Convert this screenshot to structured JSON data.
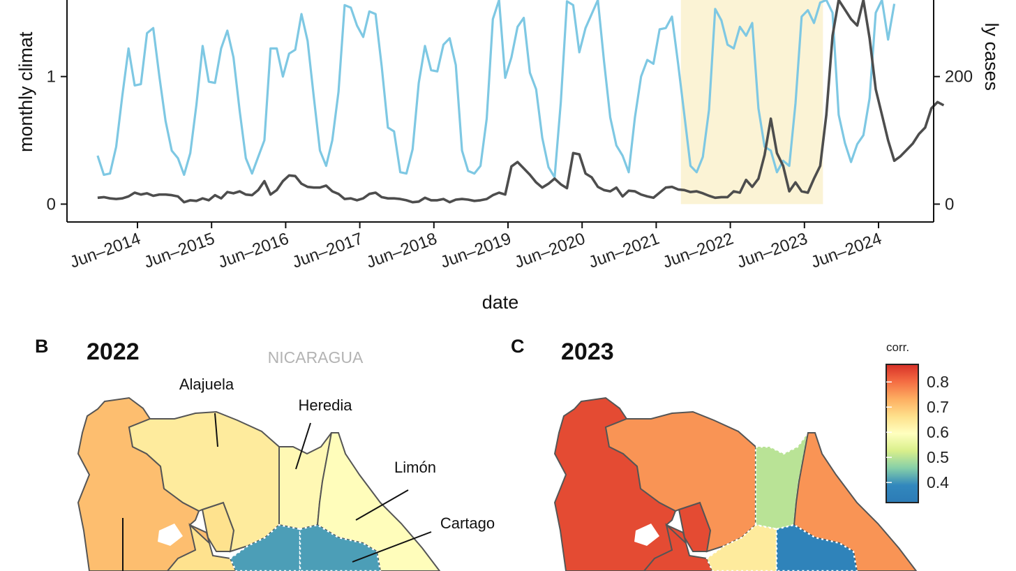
{
  "colors": {
    "climate": "#7ec8e3",
    "cases": "#4d4d4d",
    "highlight": "#fbf3d5",
    "axis": "#111111"
  },
  "chart_data": [
    {
      "type": "line",
      "title": "",
      "xlabel": "date",
      "ylabel_left": "monthly climat",
      "ylabel_right": "ly cases",
      "x_tick_labels": [
        "Jun–2014",
        "Jun–2015",
        "Jun–2016",
        "Jun–2017",
        "Jun–2018",
        "Jun–2019",
        "Jun–2020",
        "Jun–2021",
        "Jun–2022",
        "Jun–2023",
        "Jun–2024"
      ],
      "y_left_ticks": [
        "0",
        "1"
      ],
      "y_right_ticks": [
        "0",
        "200"
      ],
      "ylim_left": [
        -0.14,
        1.6
      ],
      "ylim_right": [
        -28,
        320
      ],
      "highlight_interval": [
        "Oct 2021",
        "Sep 2023"
      ],
      "series": [
        {
          "axis": "left",
          "values": [
            0.38,
            0.23,
            0.24,
            0.45,
            0.85,
            1.22,
            0.93,
            0.94,
            1.34,
            1.38,
            1.0,
            0.65,
            0.42,
            0.36,
            0.23,
            0.4,
            0.78,
            1.24,
            0.96,
            0.95,
            1.22,
            1.36,
            1.15,
            0.73,
            0.36,
            0.24,
            0.37,
            0.5,
            1.22,
            1.22,
            1.0,
            1.18,
            1.21,
            1.49,
            1.28,
            0.84,
            0.42,
            0.3,
            0.5,
            0.88,
            1.56,
            1.54,
            1.4,
            1.31,
            1.51,
            1.49,
            1.08,
            0.6,
            0.57,
            0.25,
            0.24,
            0.43,
            0.95,
            1.24,
            1.05,
            1.04,
            1.25,
            1.3,
            1.09,
            0.42,
            0.26,
            0.24,
            0.3,
            0.67,
            1.45,
            1.6,
            0.99,
            1.15,
            1.39,
            1.46,
            1.03,
            0.9,
            0.52,
            0.29,
            0.21,
            0.8,
            1.59,
            1.56,
            1.19,
            1.38,
            1.49,
            1.6,
            1.12,
            0.68,
            0.46,
            0.38,
            0.25,
            0.68,
            1.0,
            1.13,
            1.1,
            1.37,
            1.38,
            1.47,
            1.1,
            0.7,
            0.3,
            0.25,
            0.37,
            0.74,
            1.53,
            1.44,
            1.25,
            1.22,
            1.39,
            1.32,
            1.42,
            0.75,
            0.45,
            0.42,
            0.25,
            0.34,
            0.3,
            0.79,
            1.47,
            1.52,
            1.42,
            1.58,
            1.6,
            1.5,
            0.7,
            0.48,
            0.33,
            0.47,
            0.54,
            0.83,
            1.5,
            1.6,
            1.29,
            1.57
          ]
        },
        {
          "axis": "right",
          "values": [
            10,
            11,
            9,
            8,
            9,
            12,
            18,
            15,
            17,
            13,
            15,
            15,
            14,
            12,
            3,
            6,
            5,
            9,
            6,
            14,
            9,
            19,
            17,
            20,
            15,
            14,
            22,
            36,
            15,
            22,
            36,
            45,
            44,
            32,
            27,
            26,
            26,
            29,
            20,
            16,
            8,
            9,
            6,
            9,
            16,
            18,
            11,
            9,
            9,
            8,
            6,
            3,
            4,
            10,
            6,
            6,
            8,
            3,
            7,
            8,
            7,
            5,
            6,
            8,
            14,
            18,
            15,
            59,
            66,
            56,
            46,
            34,
            26,
            32,
            40,
            31,
            25,
            80,
            78,
            48,
            42,
            27,
            22,
            20,
            26,
            12,
            21,
            20,
            15,
            12,
            10,
            18,
            26,
            27,
            23,
            22,
            19,
            20,
            17,
            13,
            10,
            11,
            11,
            20,
            18,
            38,
            27,
            40,
            77,
            134,
            80,
            60,
            20,
            34,
            20,
            18,
            40,
            60,
            140,
            264,
            320,
            305,
            290,
            280,
            320,
            260,
            180,
            140,
            100,
            68,
            75,
            85,
            95,
            110,
            120,
            150,
            160,
            155
          ]
        }
      ]
    },
    {
      "type": "choropleth",
      "panel": "B",
      "title": "2022",
      "country_label": "NICARAGUA",
      "province_labels": [
        "Alajuela",
        "Heredia",
        "Limón",
        "Cartago"
      ],
      "regions": [
        {
          "province": "Guanacaste",
          "corr": 0.71
        },
        {
          "province": "Alajuela",
          "corr": 0.64
        },
        {
          "province": "Heredia",
          "corr": 0.61
        },
        {
          "province": "Limón",
          "corr": 0.6
        },
        {
          "province": "Cartago",
          "corr": 0.41
        },
        {
          "province": "San José",
          "corr": 0.41
        },
        {
          "province": "Puntarenas",
          "corr": 0.66
        }
      ]
    },
    {
      "type": "choropleth",
      "panel": "C",
      "title": "2023",
      "regions": [
        {
          "province": "Guanacaste",
          "corr": 0.84
        },
        {
          "province": "Alajuela",
          "corr": 0.76
        },
        {
          "province": "Heredia",
          "corr": 0.5
        },
        {
          "province": "Limón",
          "corr": 0.76
        },
        {
          "province": "Cartago",
          "corr": 0.36
        },
        {
          "province": "San José",
          "corr": 0.64
        },
        {
          "province": "Puntarenas",
          "corr": 0.84
        }
      ]
    }
  ],
  "legend": {
    "title": "corr.",
    "ticks": [
      "0.8",
      "0.7",
      "0.6",
      "0.5",
      "0.4"
    ],
    "tick_values": [
      0.8,
      0.7,
      0.6,
      0.5,
      0.4
    ],
    "range": [
      0.32,
      0.87
    ],
    "stops": [
      "#d73027",
      "#f46d43",
      "#fdae61",
      "#fee08b",
      "#ffffbf",
      "#d9ef8b",
      "#86cfa8",
      "#3288bd",
      "#2c7bb6"
    ]
  },
  "panels": {
    "B": "B",
    "C": "C"
  }
}
